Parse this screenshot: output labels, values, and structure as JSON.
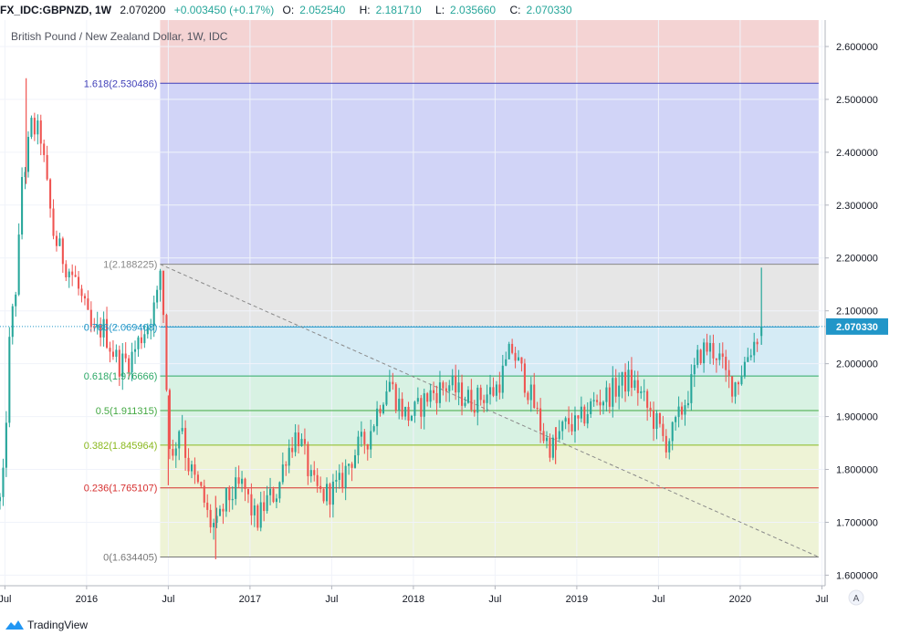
{
  "header": {
    "symbol": "FX_IDC:GBPNZD, 1W",
    "last": "2.070200",
    "change": "+0.003450 (+0.17%)",
    "open_label": "O:",
    "open": "2.052540",
    "high_label": "H:",
    "high": "2.181710",
    "low_label": "L:",
    "low": "2.035660",
    "close_label": "C:",
    "close": "2.070330"
  },
  "chart_title": "British Pound / New Zealand Dollar, 1W, IDC",
  "price_tag": "2.070330",
  "footer": {
    "brand": "TradingView",
    "auto_button": "A"
  },
  "colors": {
    "up": "#26a69a",
    "down": "#ef5350",
    "blue_zone": "#d1d4f7",
    "red_zone": "#f4d3d3",
    "grey_zone": "#e6e6e6",
    "light_blue_zone": "#d5ebf5",
    "green_zone": "#d8f2e3",
    "yellow_zone": "#eef3d6"
  },
  "chart_data": {
    "type": "candlestick",
    "title": "British Pound / New Zealand Dollar, 1W, IDC",
    "ylim": [
      1.58,
      2.65
    ],
    "y_ticks": [
      "1.600000",
      "1.700000",
      "1.800000",
      "1.900000",
      "2.000000",
      "2.100000",
      "2.200000",
      "2.300000",
      "2.400000",
      "2.500000",
      "2.600000"
    ],
    "x_ticks": [
      {
        "t": 2015.5,
        "label": "Jul"
      },
      {
        "t": 2016.0,
        "label": "2016"
      },
      {
        "t": 2016.5,
        "label": "Jul"
      },
      {
        "t": 2017.0,
        "label": "2017"
      },
      {
        "t": 2017.5,
        "label": "Jul"
      },
      {
        "t": 2018.0,
        "label": "2018"
      },
      {
        "t": 2018.5,
        "label": "Jul"
      },
      {
        "t": 2019.0,
        "label": "2019"
      },
      {
        "t": 2019.5,
        "label": "Jul"
      },
      {
        "t": 2020.0,
        "label": "2020"
      },
      {
        "t": 2020.5,
        "label": "Jul"
      }
    ],
    "xlim": [
      2015.47,
      2020.52
    ],
    "fib": {
      "t_start": 2016.45,
      "t_end": 2020.48,
      "levels": [
        {
          "ratio": "1.618",
          "price": 2.530486,
          "label": "1.618(2.530486)",
          "color": "#3f3fb8"
        },
        {
          "ratio": "1",
          "price": 2.188225,
          "label": "1(2.188225)",
          "color": "#888888"
        },
        {
          "ratio": "0.786",
          "price": 2.069408,
          "label": "0.786(2.069408)",
          "color": "#2196c8"
        },
        {
          "ratio": "0.618",
          "price": 1.976666,
          "label": "0.618(1.976666)",
          "color": "#2ca866"
        },
        {
          "ratio": "0.5",
          "price": 1.911315,
          "label": "0.5(1.911315)",
          "color": "#43a843"
        },
        {
          "ratio": "0.382",
          "price": 1.845964,
          "label": "0.382(1.845964)",
          "color": "#8ab81e"
        },
        {
          "ratio": "0.236",
          "price": 1.765107,
          "label": "0.236(1.765107)",
          "color": "#d62f2f"
        },
        {
          "ratio": "0",
          "price": 1.634405,
          "label": "0(1.634405)",
          "color": "#777777"
        }
      ],
      "top_price": 2.65
    },
    "trend_line": {
      "t1": 2016.45,
      "p1": 2.188225,
      "t2": 2020.48,
      "p2": 1.634405
    },
    "last_price": 2.07033,
    "path": [
      [
        2015.47,
        1.74
      ],
      [
        2015.49,
        1.78
      ],
      [
        2015.53,
        2.05
      ],
      [
        2015.58,
        2.18
      ],
      [
        2015.6,
        2.35
      ],
      [
        2015.63,
        2.38
      ],
      [
        2015.66,
        2.45
      ],
      [
        2015.72,
        2.43
      ],
      [
        2015.75,
        2.35
      ],
      [
        2015.8,
        2.24
      ],
      [
        2015.87,
        2.19
      ],
      [
        2015.93,
        2.16
      ],
      [
        2016.0,
        2.09
      ],
      [
        2016.04,
        2.05
      ],
      [
        2016.1,
        2.07
      ],
      [
        2016.15,
        2.03
      ],
      [
        2016.2,
        2.0
      ],
      [
        2016.27,
        2.01
      ],
      [
        2016.33,
        2.05
      ],
      [
        2016.38,
        2.08
      ],
      [
        2016.43,
        2.12
      ],
      [
        2016.45,
        2.18
      ],
      [
        2016.47,
        2.1
      ],
      [
        2016.49,
        1.95
      ],
      [
        2016.52,
        1.8
      ],
      [
        2016.55,
        1.86
      ],
      [
        2016.58,
        1.9
      ],
      [
        2016.61,
        1.82
      ],
      [
        2016.66,
        1.78
      ],
      [
        2016.71,
        1.75
      ],
      [
        2016.75,
        1.7
      ],
      [
        2016.8,
        1.69
      ],
      [
        2016.85,
        1.74
      ],
      [
        2016.91,
        1.76
      ],
      [
        2016.96,
        1.77
      ],
      [
        2017.0,
        1.73
      ],
      [
        2017.04,
        1.7
      ],
      [
        2017.1,
        1.74
      ],
      [
        2017.17,
        1.76
      ],
      [
        2017.22,
        1.83
      ],
      [
        2017.29,
        1.87
      ],
      [
        2017.33,
        1.83
      ],
      [
        2017.38,
        1.77
      ],
      [
        2017.44,
        1.75
      ],
      [
        2017.5,
        1.76
      ],
      [
        2017.55,
        1.77
      ],
      [
        2017.6,
        1.81
      ],
      [
        2017.66,
        1.84
      ],
      [
        2017.72,
        1.86
      ],
      [
        2017.8,
        1.93
      ],
      [
        2017.85,
        1.97
      ],
      [
        2017.9,
        1.93
      ],
      [
        2017.96,
        1.9
      ],
      [
        2018.02,
        1.91
      ],
      [
        2018.09,
        1.94
      ],
      [
        2018.15,
        1.95
      ],
      [
        2018.22,
        1.96
      ],
      [
        2018.29,
        1.94
      ],
      [
        2018.36,
        1.93
      ],
      [
        2018.43,
        1.94
      ],
      [
        2018.5,
        1.95
      ],
      [
        2018.56,
        1.99
      ],
      [
        2018.6,
        2.03
      ],
      [
        2018.64,
        2.0
      ],
      [
        2018.68,
        1.97
      ],
      [
        2018.74,
        1.92
      ],
      [
        2018.8,
        1.86
      ],
      [
        2018.85,
        1.84
      ],
      [
        2018.9,
        1.87
      ],
      [
        2018.95,
        1.89
      ],
      [
        2019.0,
        1.88
      ],
      [
        2019.06,
        1.91
      ],
      [
        2019.12,
        1.93
      ],
      [
        2019.19,
        1.94
      ],
      [
        2019.26,
        1.96
      ],
      [
        2019.32,
        1.97
      ],
      [
        2019.38,
        1.95
      ],
      [
        2019.44,
        1.91
      ],
      [
        2019.5,
        1.88
      ],
      [
        2019.54,
        1.85
      ],
      [
        2019.59,
        1.87
      ],
      [
        2019.64,
        1.91
      ],
      [
        2019.7,
        1.96
      ],
      [
        2019.75,
        2.02
      ],
      [
        2019.8,
        2.03
      ],
      [
        2019.86,
        2.02
      ],
      [
        2019.92,
        1.97
      ],
      [
        2019.96,
        1.96
      ],
      [
        2020.0,
        1.98
      ],
      [
        2020.05,
        2.02
      ],
      [
        2020.1,
        2.05
      ],
      [
        2020.13,
        2.07
      ]
    ],
    "spikes": [
      {
        "t": 2015.63,
        "high": 2.54,
        "low": 2.34
      },
      {
        "t": 2016.79,
        "high": 1.75,
        "low": 1.63
      },
      {
        "t": 2016.5,
        "high": 1.94,
        "low": 1.77
      },
      {
        "t": 2018.87,
        "high": 1.88,
        "low": 1.81
      },
      {
        "t": 2020.13,
        "open": 2.0525,
        "high": 2.1817,
        "low": 2.0357,
        "close": 2.0703
      }
    ]
  }
}
